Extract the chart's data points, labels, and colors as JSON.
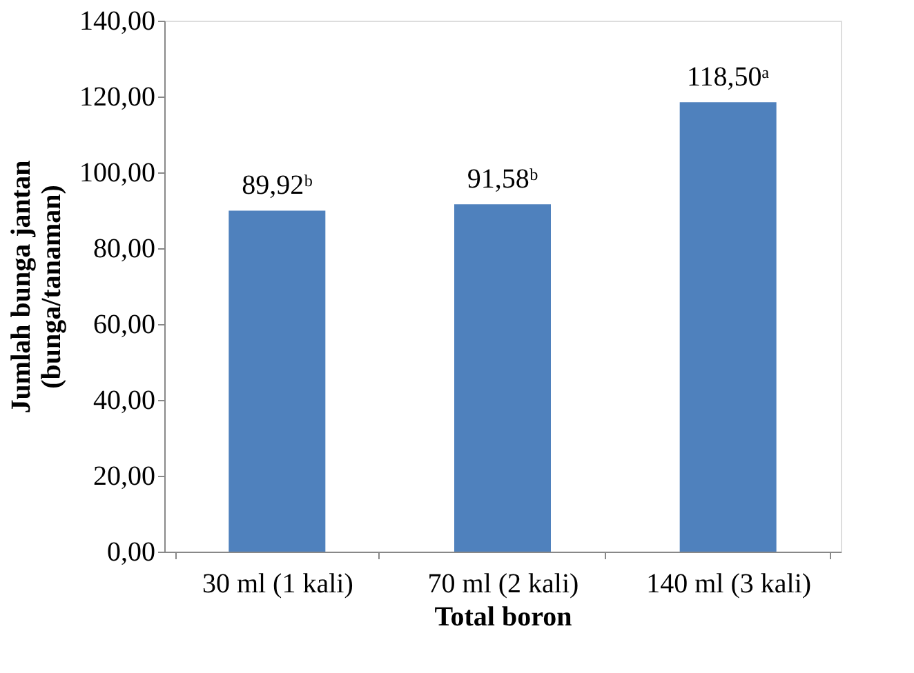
{
  "chart_data": {
    "type": "bar",
    "xlabel": "Total boron",
    "ylabel": "Jumlah bunga jantan\n(bunga/tanaman)",
    "categories": [
      "30 ml (1 kali)",
      "70 ml (2 kali)",
      "140 ml (3 kali)"
    ],
    "values": [
      89.92,
      91.58,
      118.5
    ],
    "color": "#4f81bd",
    "value_labels": [
      "89,92ᵇ",
      "91,58ᵇ",
      "118,50ᵃ"
    ],
    "ylim": [
      0,
      140
    ],
    "yticks": [
      {
        "value": 0,
        "label": "0,00"
      },
      {
        "value": 20,
        "label": "20,00"
      },
      {
        "value": 40,
        "label": "40,00"
      },
      {
        "value": 60,
        "label": "60,00"
      },
      {
        "value": 80,
        "label": "80,00"
      },
      {
        "value": 100,
        "label": "100,00"
      },
      {
        "value": 120,
        "label": "120,00"
      },
      {
        "value": 140,
        "label": "140,00"
      }
    ],
    "grid": false
  }
}
